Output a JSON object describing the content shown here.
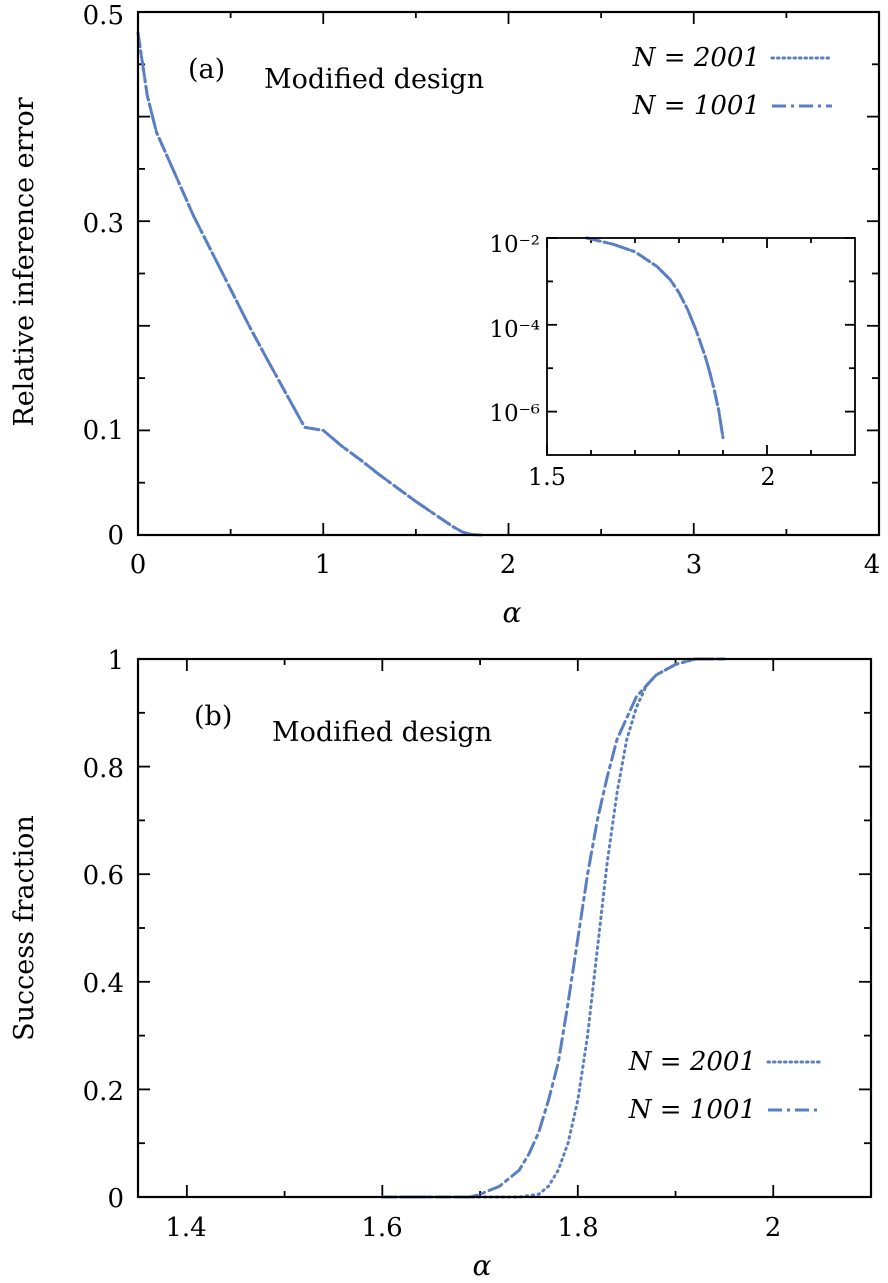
{
  "colors": {
    "series": "#5a7ec4",
    "axis": "#000000"
  },
  "chart_data": [
    {
      "type": "line",
      "panel_label": "(a)",
      "annotation": "Modified design",
      "xlabel": "α",
      "ylabel": "Relative inference error",
      "xlim": [
        0,
        4
      ],
      "ylim": [
        0,
        0.5
      ],
      "xticks": [
        "0",
        "1",
        "2",
        "3",
        "4"
      ],
      "yticks": [
        "0",
        "0.1",
        "0.3",
        "0.5"
      ],
      "legend_position": "top-right",
      "series": [
        {
          "name": "N = 2001",
          "style": "dotted",
          "x": [
            0.0,
            0.05,
            0.1,
            0.2,
            0.3,
            0.4,
            0.5,
            0.6,
            0.7,
            0.8,
            0.9,
            1.0,
            1.1,
            1.2,
            1.3,
            1.4,
            1.5,
            1.6,
            1.7,
            1.75,
            1.8,
            1.85
          ],
          "y": [
            0.48,
            0.42,
            0.385,
            0.345,
            0.305,
            0.27,
            0.235,
            0.2,
            0.167,
            0.135,
            0.103,
            0.1,
            0.085,
            0.072,
            0.058,
            0.045,
            0.032,
            0.02,
            0.008,
            0.003,
            0.0005,
            0.0
          ]
        },
        {
          "name": "N = 1001",
          "style": "dash-dot",
          "x": [
            0.0,
            0.05,
            0.1,
            0.2,
            0.3,
            0.4,
            0.5,
            0.6,
            0.7,
            0.8,
            0.9,
            1.0,
            1.1,
            1.2,
            1.3,
            1.4,
            1.5,
            1.6,
            1.7,
            1.75,
            1.8,
            1.85
          ],
          "y": [
            0.48,
            0.42,
            0.385,
            0.345,
            0.305,
            0.27,
            0.235,
            0.2,
            0.167,
            0.135,
            0.103,
            0.1,
            0.085,
            0.072,
            0.058,
            0.045,
            0.032,
            0.02,
            0.008,
            0.003,
            0.0005,
            0.0
          ]
        }
      ],
      "inset": {
        "type": "line",
        "yscale": "log",
        "xlim": [
          1.5,
          2.2
        ],
        "ylim": [
          1e-07,
          0.01
        ],
        "xticks": [
          "1.5",
          "2"
        ],
        "yticks": [
          "10⁻²",
          "10⁻⁴",
          "10⁻⁶"
        ],
        "x": [
          1.59,
          1.65,
          1.7,
          1.75,
          1.78,
          1.8,
          1.82,
          1.84,
          1.86,
          1.87,
          1.88,
          1.89,
          1.9
        ],
        "y": [
          0.01,
          0.0072,
          0.0048,
          0.0022,
          0.0011,
          0.00055,
          0.00022,
          7e-05,
          1.8e-05,
          8e-06,
          3.2e-06,
          1.1e-06,
          2.5e-07
        ]
      }
    },
    {
      "type": "line",
      "panel_label": "(b)",
      "annotation": "Modified design",
      "xlabel": "α",
      "ylabel": "Success fraction",
      "xlim": [
        1.35,
        2.1
      ],
      "ylim": [
        0,
        1
      ],
      "xticks": [
        "1.4",
        "1.6",
        "1.8",
        "2"
      ],
      "yticks": [
        "0",
        "0.2",
        "0.4",
        "0.6",
        "0.8",
        "1"
      ],
      "legend_position": "bottom-right",
      "series": [
        {
          "name": "N = 2001",
          "style": "dotted",
          "x": [
            1.6,
            1.74,
            1.76,
            1.77,
            1.78,
            1.79,
            1.8,
            1.81,
            1.82,
            1.83,
            1.84,
            1.85,
            1.86,
            1.87,
            1.88,
            1.9,
            1.92,
            1.95
          ],
          "y": [
            0.0,
            0.0,
            0.005,
            0.02,
            0.05,
            0.1,
            0.18,
            0.3,
            0.46,
            0.62,
            0.75,
            0.85,
            0.91,
            0.95,
            0.97,
            0.99,
            1.0,
            1.0
          ]
        },
        {
          "name": "N = 1001",
          "style": "dash-dot",
          "x": [
            1.6,
            1.69,
            1.7,
            1.72,
            1.74,
            1.75,
            1.76,
            1.77,
            1.78,
            1.79,
            1.8,
            1.81,
            1.82,
            1.83,
            1.84,
            1.86,
            1.88,
            1.9,
            1.92,
            1.95
          ],
          "y": [
            0.0,
            0.0,
            0.005,
            0.02,
            0.05,
            0.08,
            0.12,
            0.18,
            0.25,
            0.36,
            0.48,
            0.6,
            0.7,
            0.78,
            0.85,
            0.93,
            0.97,
            0.99,
            1.0,
            1.0
          ]
        }
      ]
    }
  ]
}
